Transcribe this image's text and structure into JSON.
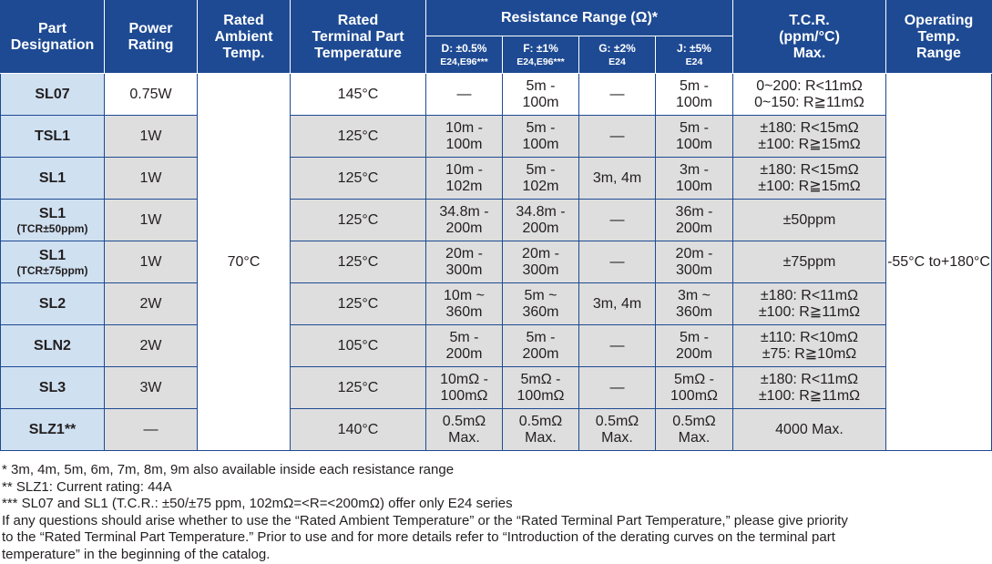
{
  "headers": {
    "part": [
      "Part",
      "Designation"
    ],
    "power": [
      "Power",
      "Rating"
    ],
    "ambient": [
      "Rated",
      "Ambient",
      "Temp."
    ],
    "terminal": [
      "Rated",
      "Terminal Part",
      "Temperature"
    ],
    "resistance": "Resistance Range (Ω)*",
    "sub": [
      {
        "top": "D: ±0.5%",
        "bottom": "E24,E96***"
      },
      {
        "top": "F: ±1%",
        "bottom": "E24,E96***"
      },
      {
        "top": "G: ±2%",
        "bottom": "E24"
      },
      {
        "top": "J: ±5%",
        "bottom": "E24"
      }
    ],
    "tcr": [
      "T.C.R.",
      "(ppm/°C)",
      "Max."
    ],
    "operating": [
      "Operating",
      "Temp.",
      "Range"
    ]
  },
  "ambient_temp": "70°C",
  "operating_range": [
    "-55°C to",
    "+180°C"
  ],
  "rows": [
    {
      "part": "SL07",
      "part_note": "",
      "power": "0.75W",
      "terminal": "145°C",
      "d": [
        "—"
      ],
      "f": [
        "5m -",
        "100m"
      ],
      "g": [
        "—"
      ],
      "j": [
        "5m -",
        "100m"
      ],
      "tcr": [
        "0~200: R<11mΩ",
        "0~150: R≧11mΩ"
      ]
    },
    {
      "part": "TSL1",
      "part_note": "",
      "power": "1W",
      "terminal": "125°C",
      "d": [
        "10m -",
        "100m"
      ],
      "f": [
        "5m -",
        "100m"
      ],
      "g": [
        "—"
      ],
      "j": [
        "5m -",
        "100m"
      ],
      "tcr": [
        "±180: R<15mΩ",
        "±100: R≧15mΩ"
      ]
    },
    {
      "part": "SL1",
      "part_note": "",
      "power": "1W",
      "terminal": "125°C",
      "d": [
        "10m -",
        "102m"
      ],
      "f": [
        "5m -",
        "102m"
      ],
      "g": [
        "3m, 4m"
      ],
      "j": [
        "3m -",
        "100m"
      ],
      "tcr": [
        "±180: R<15mΩ",
        "±100: R≧15mΩ"
      ]
    },
    {
      "part": "SL1",
      "part_note": "(TCR±50ppm)",
      "power": "1W",
      "terminal": "125°C",
      "d": [
        "34.8m -",
        "200m"
      ],
      "f": [
        "34.8m -",
        "200m"
      ],
      "g": [
        "—"
      ],
      "j": [
        "36m -",
        "200m"
      ],
      "tcr": [
        "±50ppm"
      ]
    },
    {
      "part": "SL1",
      "part_note": "(TCR±75ppm)",
      "power": "1W",
      "terminal": "125°C",
      "d": [
        "20m -",
        "300m"
      ],
      "f": [
        "20m -",
        "300m"
      ],
      "g": [
        "—"
      ],
      "j": [
        "20m -",
        "300m"
      ],
      "tcr": [
        "±75ppm"
      ]
    },
    {
      "part": "SL2",
      "part_note": "",
      "power": "2W",
      "terminal": "125°C",
      "d": [
        "10m ~",
        "360m"
      ],
      "f": [
        "5m ~",
        "360m"
      ],
      "g": [
        "3m, 4m"
      ],
      "j": [
        "3m ~",
        "360m"
      ],
      "tcr": [
        "±180: R<11mΩ",
        "±100: R≧11mΩ"
      ]
    },
    {
      "part": "SLN2",
      "part_note": "",
      "power": "2W",
      "terminal": "105°C",
      "d": [
        "5m -",
        "200m"
      ],
      "f": [
        "5m -",
        "200m"
      ],
      "g": [
        "—"
      ],
      "j": [
        "5m -",
        "200m"
      ],
      "tcr": [
        "±110: R<10mΩ",
        "±75: R≧10mΩ"
      ]
    },
    {
      "part": "SL3",
      "part_note": "",
      "power": "3W",
      "terminal": "125°C",
      "d": [
        "10mΩ -",
        "100mΩ"
      ],
      "f": [
        "5mΩ -",
        "100mΩ"
      ],
      "g": [
        "—"
      ],
      "j": [
        "5mΩ -",
        "100mΩ"
      ],
      "tcr": [
        "±180: R<11mΩ",
        "±100: R≧11mΩ"
      ]
    },
    {
      "part": "SLZ1**",
      "part_note": "",
      "power": "—",
      "terminal": "140°C",
      "d": [
        "0.5mΩ",
        "Max."
      ],
      "f": [
        "0.5mΩ",
        "Max."
      ],
      "g": [
        "0.5mΩ",
        "Max."
      ],
      "j": [
        "0.5mΩ",
        "Max."
      ],
      "tcr": [
        "4000 Max."
      ]
    }
  ],
  "notes": [
    "* 3m, 4m, 5m, 6m, 7m, 8m, 9m also available inside each resistance range",
    "** SLZ1: Current rating: 44A",
    "*** SL07 and SL1 (T.C.R.: ±50/±75 ppm, 102mΩ=<R=<200mΩ) offer only E24 series",
    "If any questions should arise whether to use the “Rated Ambient Temperature” or the “Rated Terminal Part Temperature,” please give priority",
    "to the “Rated Terminal Part Temperature.” Prior to use and for more details refer to “Introduction of the derating curves on the terminal part",
    "temperature” in the beginning of the catalog."
  ],
  "colors": {
    "header": "#1e4a93",
    "part_cell": "#cfe0f1",
    "shaded_row": "#dedede"
  }
}
